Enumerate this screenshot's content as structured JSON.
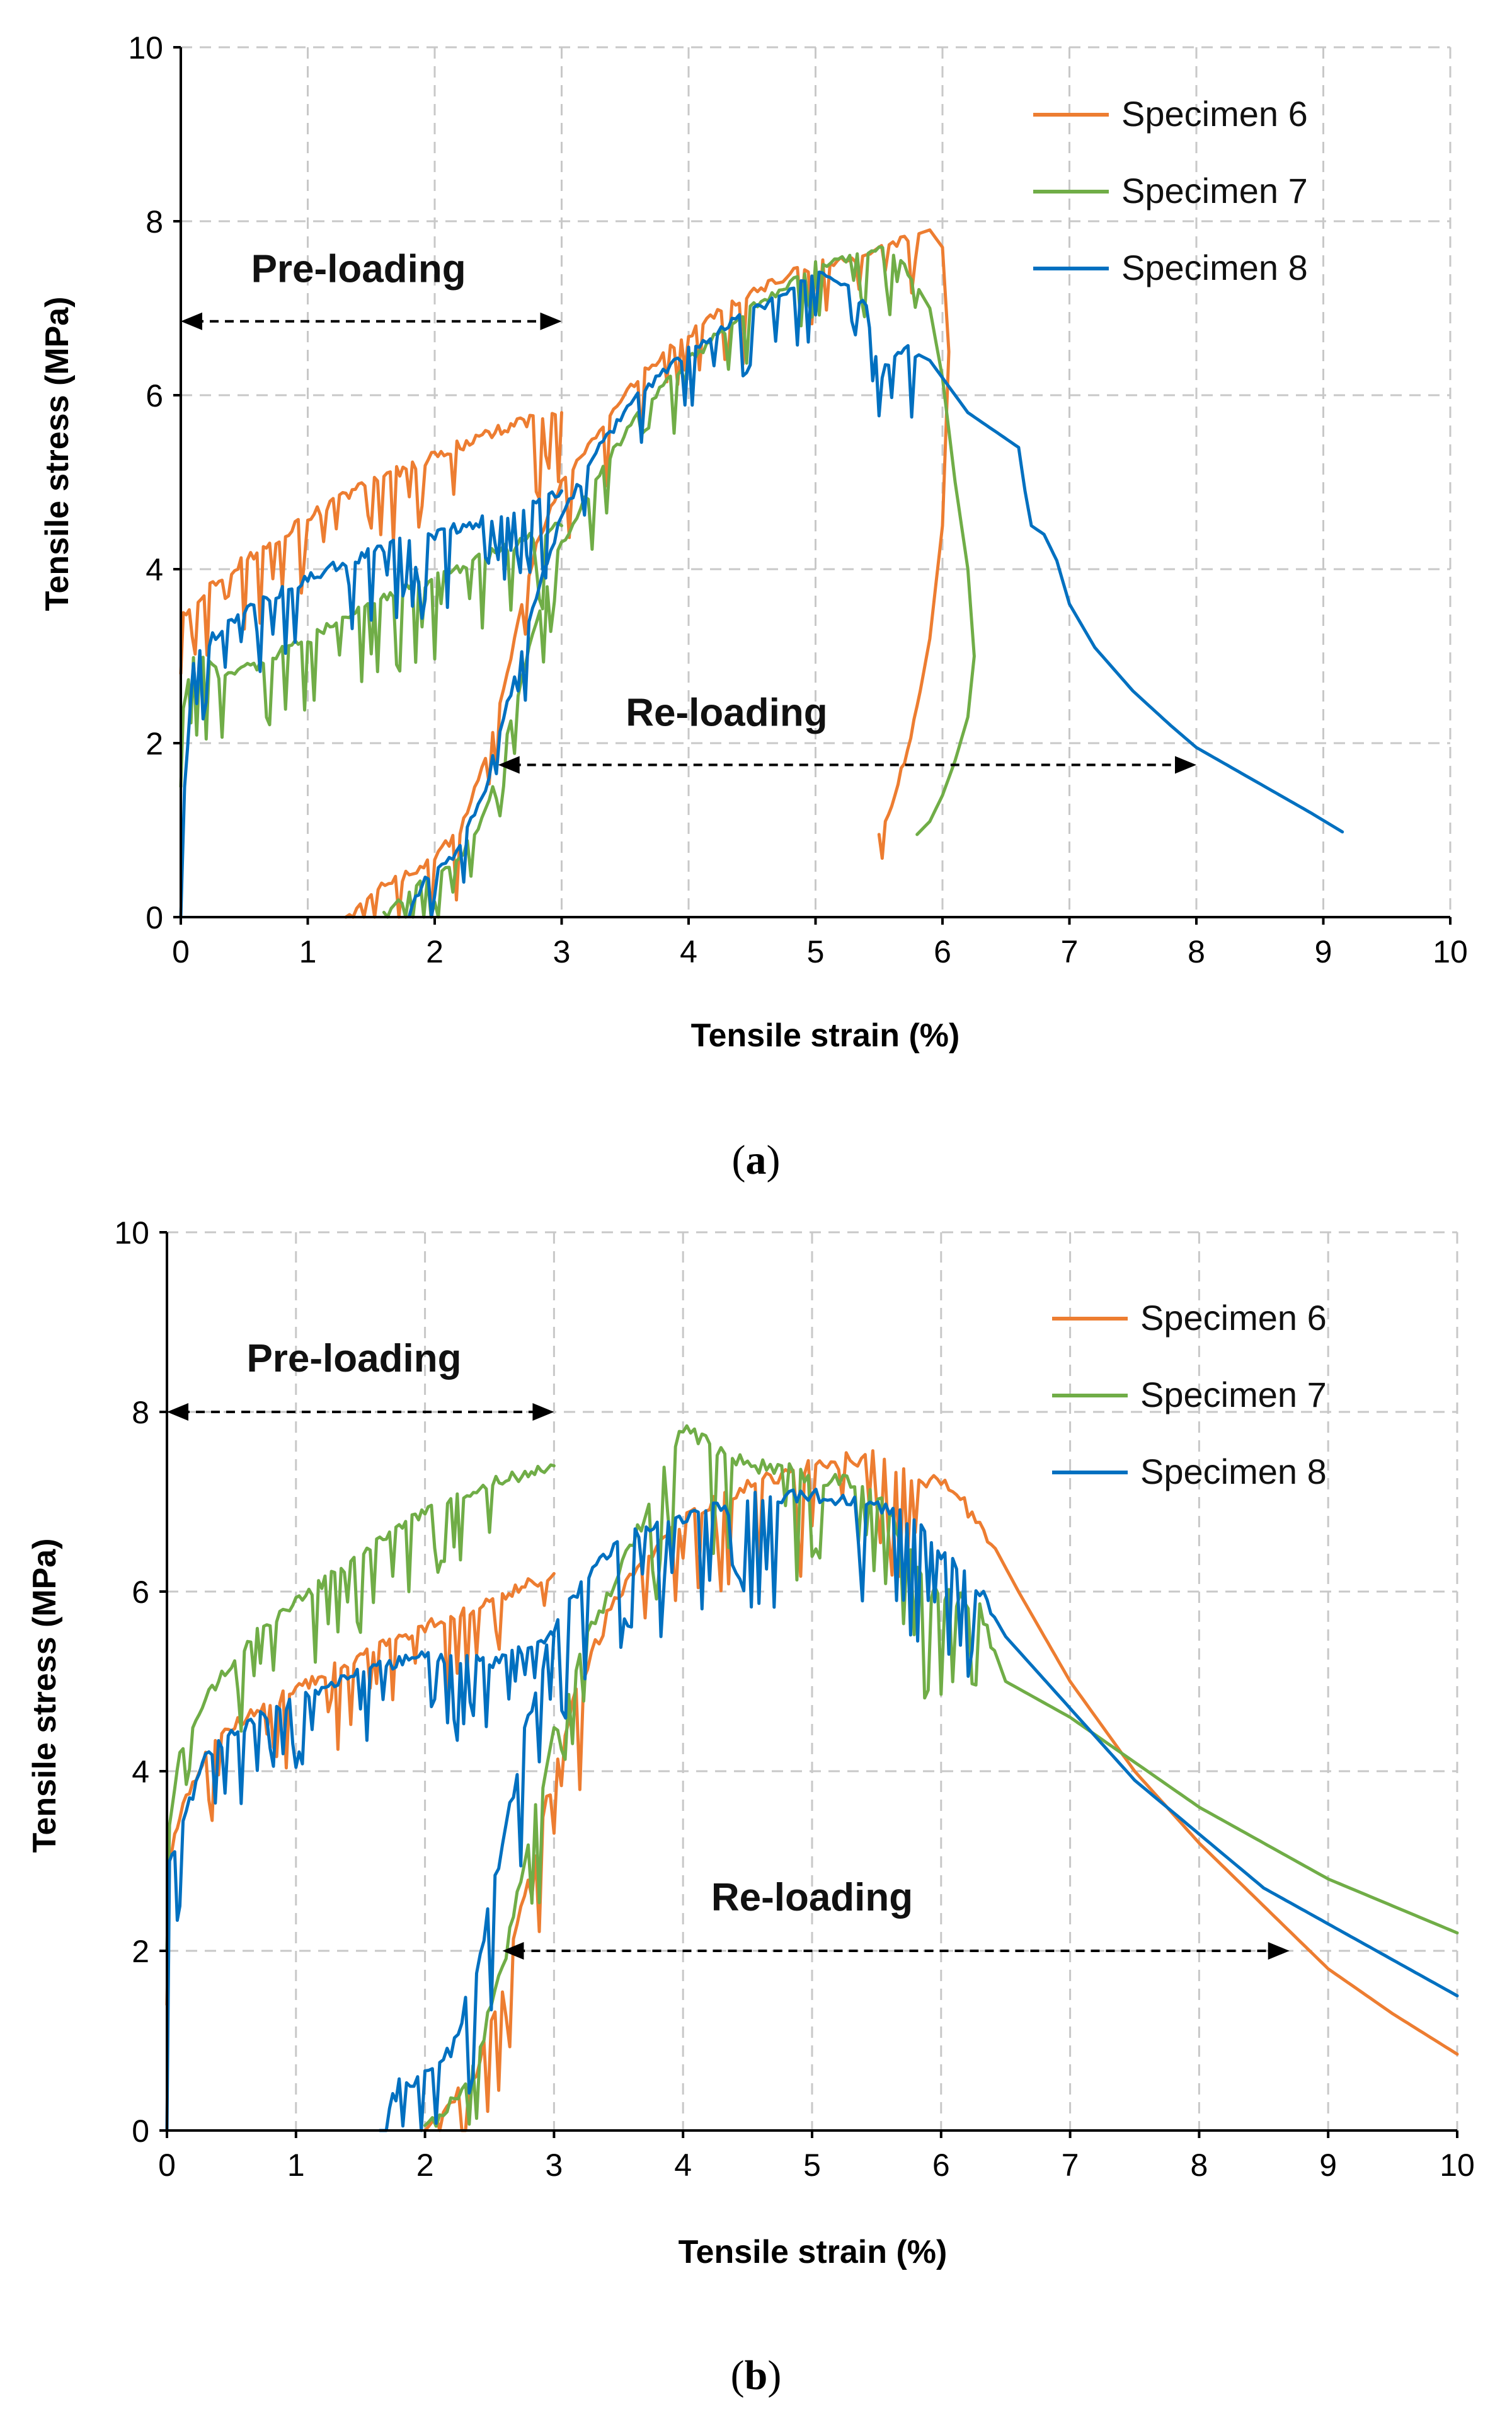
{
  "chart_data": [
    {
      "panel": "a",
      "type": "line",
      "caption": "a",
      "xlabel": "Tensile strain (%)",
      "ylabel": "Tensile stress (MPa)",
      "xlim": [
        0,
        10
      ],
      "ylim": [
        0,
        10
      ],
      "xticks": [
        0,
        1,
        2,
        3,
        4,
        5,
        6,
        7,
        8,
        9,
        10
      ],
      "yticks": [
        0,
        2,
        4,
        6,
        8,
        10
      ],
      "grid": true,
      "legend_position": "top-right",
      "annotations": [
        {
          "text": "Pre-loading",
          "arrow_from": 0,
          "arrow_to": 3,
          "arrow_y": 6.85,
          "text_x": 1.4,
          "text_y": 7.3
        },
        {
          "text": "Re-loading",
          "arrow_from": 2.5,
          "arrow_to": 8.0,
          "arrow_y": 1.75,
          "text_x": 4.3,
          "text_y": 2.2
        }
      ],
      "series": [
        {
          "name": "Specimen 6",
          "color": "#ED7D31",
          "segments": [
            {
              "x": [
                0,
                0.02,
                0.3,
                0.6,
                1.0,
                1.5,
                2.0,
                2.5,
                3.0
              ],
              "y": [
                2.8,
                3.5,
                3.9,
                4.2,
                4.6,
                5.0,
                5.3,
                5.6,
                5.8
              ]
            },
            {
              "x": [
                1.3,
                1.5,
                1.8,
                2.0,
                2.2,
                2.4,
                2.6,
                2.8,
                3.0,
                3.3,
                3.6,
                4.0,
                4.4,
                4.8,
                5.0,
                5.4,
                5.7,
                5.9,
                6.0,
                6.05,
                6.0,
                5.9,
                5.8,
                5.7,
                5.6,
                5.5
              ],
              "y": [
                0.0,
                0.3,
                0.5,
                0.7,
                1.0,
                1.8,
                3.0,
                4.3,
                5.0,
                5.6,
                6.2,
                6.7,
                7.1,
                7.4,
                7.5,
                7.6,
                7.8,
                7.9,
                7.7,
                6.5,
                4.5,
                3.2,
                2.4,
                1.8,
                1.3,
                0.95
              ]
            }
          ]
        },
        {
          "name": "Specimen 7",
          "color": "#70AD47",
          "segments": [
            {
              "x": [
                0,
                0.02,
                0.1,
                0.3,
                0.6,
                1.0,
                1.5,
                2.0,
                2.5,
                3.0
              ],
              "y": [
                1.5,
                2.4,
                3.0,
                2.8,
                2.9,
                3.2,
                3.6,
                3.9,
                4.2,
                4.5
              ]
            },
            {
              "x": [
                1.6,
                1.8,
                2.0,
                2.2,
                2.4,
                2.6,
                2.8,
                3.0,
                3.3,
                3.6,
                4.0,
                4.4,
                4.8,
                5.0,
                5.3,
                5.5,
                5.7,
                5.9,
                6.0,
                6.1,
                6.2,
                6.25,
                6.2,
                6.1,
                6.0,
                5.9,
                5.8
              ],
              "y": [
                0.0,
                0.3,
                0.5,
                0.7,
                1.2,
                2.2,
                3.4,
                4.3,
                5.1,
                5.8,
                6.4,
                6.9,
                7.3,
                7.5,
                7.6,
                7.7,
                7.5,
                7.0,
                6.2,
                5.0,
                4.0,
                3.0,
                2.3,
                1.8,
                1.4,
                1.1,
                0.95
              ]
            }
          ]
        },
        {
          "name": "Specimen 8",
          "color": "#0070C0",
          "segments": [
            {
              "x": [
                0,
                0.03,
                0.1,
                0.3,
                0.6,
                1.0,
                1.5,
                2.0,
                2.5,
                3.0
              ],
              "y": [
                0.0,
                1.5,
                2.9,
                3.3,
                3.6,
                3.9,
                4.2,
                4.4,
                4.6,
                4.9
              ]
            },
            {
              "x": [
                1.8,
                1.9,
                2.0,
                2.2,
                2.4,
                2.6,
                2.8,
                3.0,
                3.3,
                3.6,
                4.0,
                4.4,
                4.8,
                5.0,
                5.2,
                5.4,
                5.5,
                5.6,
                5.7,
                5.9,
                6.0,
                6.2,
                6.4,
                6.6,
                6.65,
                6.7,
                6.8,
                6.9,
                7.0,
                7.2,
                7.5,
                7.8,
                8.0,
                8.3,
                8.6,
                8.9,
                9.15
              ],
              "y": [
                0.0,
                0.4,
                0.5,
                0.8,
                1.5,
                2.6,
                3.7,
                4.6,
                5.4,
                6.0,
                6.5,
                6.9,
                7.2,
                7.4,
                7.3,
                7.0,
                6.2,
                6.4,
                6.55,
                6.4,
                6.2,
                5.8,
                5.6,
                5.4,
                4.9,
                4.5,
                4.4,
                4.1,
                3.6,
                3.1,
                2.6,
                2.2,
                1.95,
                1.7,
                1.45,
                1.2,
                0.98
              ]
            }
          ]
        }
      ]
    },
    {
      "panel": "b",
      "type": "line",
      "caption": "b",
      "xlabel": "Tensile strain (%)",
      "ylabel": "Tensile stress (MPa)",
      "xlim": [
        0,
        10
      ],
      "ylim": [
        0,
        10
      ],
      "xticks": [
        0,
        1,
        2,
        3,
        4,
        5,
        6,
        7,
        8,
        9,
        10
      ],
      "yticks": [
        0,
        2,
        4,
        6,
        8,
        10
      ],
      "grid": true,
      "legend_position": "top-right",
      "annotations": [
        {
          "text": "Pre-loading",
          "arrow_from": 0,
          "arrow_to": 3,
          "arrow_y": 8.0,
          "text_x": 1.45,
          "text_y": 8.45
        },
        {
          "text": "Re-loading",
          "arrow_from": 2.6,
          "arrow_to": 8.7,
          "arrow_y": 2.0,
          "text_x": 5.0,
          "text_y": 2.45
        }
      ],
      "series": [
        {
          "name": "Specimen 6",
          "color": "#ED7D31",
          "segments": [
            {
              "x": [
                0,
                0.02,
                0.1,
                0.3,
                0.6,
                1.0,
                1.5,
                2.0,
                2.5,
                3.0
              ],
              "y": [
                1.4,
                3.0,
                3.5,
                4.2,
                4.6,
                4.9,
                5.3,
                5.6,
                5.9,
                6.2
              ]
            },
            {
              "x": [
                2.0,
                2.2,
                2.4,
                2.6,
                2.8,
                3.0,
                3.2,
                3.5,
                4.0,
                4.5,
                5.0,
                5.5,
                5.8,
                6.0,
                6.3,
                6.6,
                7.0,
                7.5,
                8.0,
                8.5,
                9.0,
                9.5,
                10.0
              ],
              "y": [
                0.0,
                0.3,
                0.7,
                1.5,
                2.8,
                4.0,
                5.0,
                6.0,
                6.8,
                7.2,
                7.4,
                7.5,
                7.2,
                7.2,
                6.8,
                6.0,
                5.0,
                4.0,
                3.2,
                2.5,
                1.8,
                1.3,
                0.85
              ]
            }
          ]
        },
        {
          "name": "Specimen 7",
          "color": "#70AD47",
          "segments": [
            {
              "x": [
                0,
                0.02,
                0.1,
                0.3,
                0.6,
                1.0,
                1.5,
                2.0,
                2.5,
                3.0
              ],
              "y": [
                2.0,
                3.4,
                4.2,
                4.8,
                5.4,
                5.9,
                6.4,
                6.9,
                7.2,
                7.4
              ]
            },
            {
              "x": [
                2.0,
                2.2,
                2.4,
                2.6,
                2.8,
                3.0,
                3.2,
                3.5,
                4.0,
                4.5,
                5.0,
                5.3,
                5.6,
                5.9,
                6.0,
                6.3,
                6.5,
                7.0,
                7.5,
                8.0,
                8.5,
                9.0,
                9.5,
                10.0
              ],
              "y": [
                0.0,
                0.3,
                0.8,
                1.8,
                3.2,
                4.4,
                5.3,
                6.2,
                7.8,
                7.4,
                7.3,
                7.2,
                6.9,
                6.0,
                6.0,
                5.8,
                5.0,
                4.6,
                4.1,
                3.6,
                3.2,
                2.8,
                2.5,
                2.2
              ]
            }
          ]
        },
        {
          "name": "Specimen 8",
          "color": "#0070C0",
          "segments": [
            {
              "x": [
                0,
                0.02,
                0.1,
                0.3,
                0.6,
                1.0,
                1.5,
                2.0,
                2.5,
                3.0
              ],
              "y": [
                0.0,
                3.0,
                3.3,
                4.2,
                4.5,
                4.8,
                5.1,
                5.3,
                5.2,
                5.5
              ]
            },
            {
              "x": [
                1.65,
                1.8,
                2.0,
                2.2,
                2.4,
                2.6,
                2.8,
                3.0,
                3.3,
                3.6,
                4.0,
                4.5,
                5.0,
                5.3,
                5.6,
                5.9,
                6.0,
                6.3,
                6.5,
                7.0,
                7.5,
                8.0,
                8.5,
                9.0,
                9.5,
                10.0
              ],
              "y": [
                0.0,
                0.5,
                0.6,
                0.9,
                1.8,
                3.2,
                4.6,
                5.6,
                6.3,
                6.6,
                6.8,
                7.0,
                7.1,
                7.0,
                6.9,
                6.6,
                6.4,
                6.0,
                5.5,
                4.7,
                3.9,
                3.3,
                2.7,
                2.3,
                1.9,
                1.5
              ]
            }
          ]
        }
      ]
    }
  ]
}
